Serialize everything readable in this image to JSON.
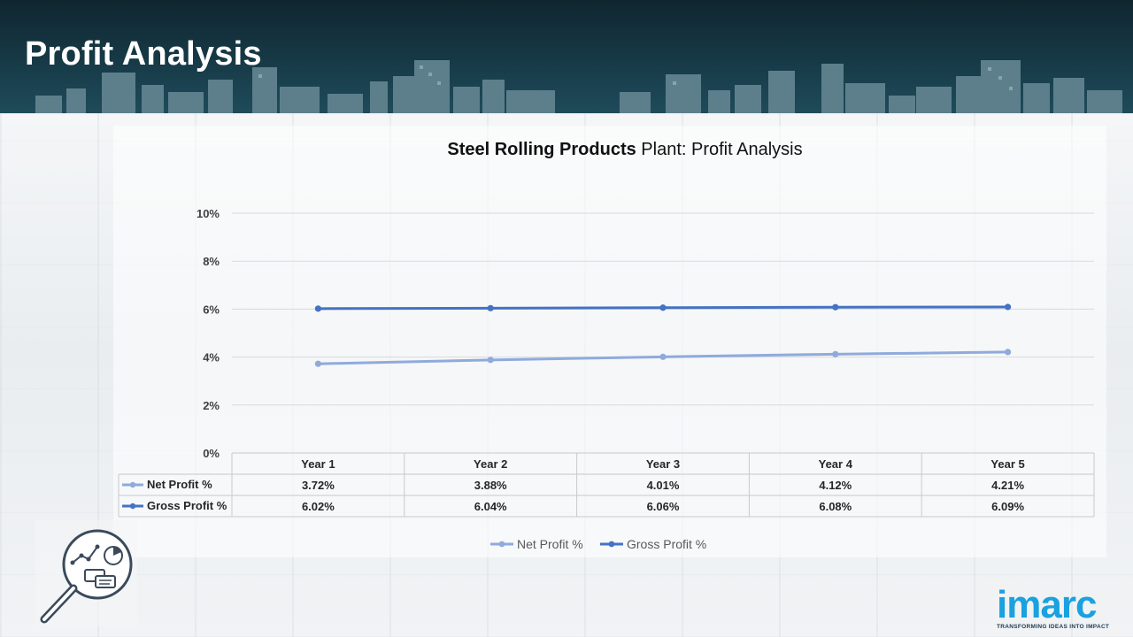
{
  "header": {
    "title": "Profit Analysis"
  },
  "chart_data": {
    "type": "line",
    "title_bold": "Steel Rolling Products",
    "title_rest": " Plant: Profit Analysis",
    "categories": [
      "Year 1",
      "Year 2",
      "Year 3",
      "Year 4",
      "Year 5"
    ],
    "series": [
      {
        "name": "Net Profit %",
        "values": [
          3.72,
          3.88,
          4.01,
          4.12,
          4.21
        ],
        "labels": [
          "3.72%",
          "3.88%",
          "4.01%",
          "4.12%",
          "4.21%"
        ],
        "color": "#8faadc"
      },
      {
        "name": "Gross Profit %",
        "values": [
          6.02,
          6.04,
          6.06,
          6.08,
          6.09
        ],
        "labels": [
          "6.02%",
          "6.04%",
          "6.06%",
          "6.08%",
          "6.09%"
        ],
        "color": "#4472c4"
      }
    ],
    "ylim": [
      0,
      10
    ],
    "yticks": [
      "0%",
      "2%",
      "4%",
      "6%",
      "8%",
      "10%"
    ],
    "grid": true,
    "legend": "bottom",
    "data_table": true
  },
  "logo": {
    "word": "imarc",
    "tagline": "TRANSFORMING IDEAS INTO IMPACT"
  },
  "colors": {
    "header": "#173a47",
    "logo": "#1aa1e0"
  },
  "icons": [
    "skyline-graphic",
    "analytics-magnifier-icon"
  ]
}
